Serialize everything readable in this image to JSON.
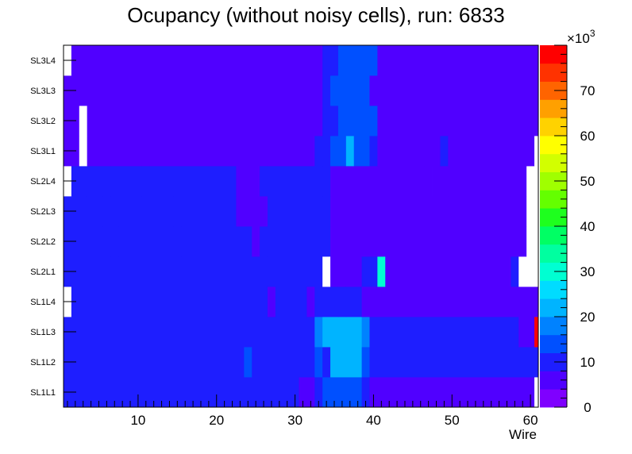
{
  "chart_data": {
    "type": "heatmap",
    "title": "Ocupancy (without noisy cells), run: 6833",
    "xlabel": "Wire",
    "ylabel": "",
    "x_ticks": [
      "10",
      "20",
      "30",
      "40",
      "50",
      "60"
    ],
    "x_tick_values": [
      10,
      20,
      30,
      40,
      50,
      60
    ],
    "xlim": [
      0.5,
      61
    ],
    "rows": [
      "SL1L1",
      "SL1L2",
      "SL1L3",
      "SL1L4",
      "SL2L1",
      "SL2L2",
      "SL2L3",
      "SL2L4",
      "SL3L1",
      "SL3L2",
      "SL3L3",
      "SL3L4"
    ],
    "zlim": [
      0,
      80
    ],
    "z_multiplier": "×10³",
    "z_multiplier_base": "×10",
    "z_multiplier_exp": "3",
    "colorbar_ticks": [
      "0",
      "10",
      "20",
      "30",
      "40",
      "50",
      "60",
      "70"
    ],
    "colorbar_tick_values": [
      0,
      10,
      20,
      30,
      40,
      50,
      60,
      70
    ],
    "colorbar_colors": [
      "#7f00ff",
      "#5000ff",
      "#1e1eff",
      "#0050ff",
      "#0082ff",
      "#00b4ff",
      "#00dcff",
      "#00ffd2",
      "#00ffa0",
      "#00ff64",
      "#1eff1e",
      "#64ff00",
      "#a0ff00",
      "#d2ff00",
      "#ffff00",
      "#ffd200",
      "#ffa000",
      "#ff6400",
      "#ff3200",
      "#ff0000"
    ],
    "empty_cell_value": null,
    "cells": [
      [
        [
          1,
          30,
          8.5
        ],
        [
          31,
          32,
          6.5
        ],
        [
          33,
          33,
          8.5
        ],
        [
          34,
          38,
          14
        ],
        [
          39,
          39,
          11
        ],
        [
          40,
          59,
          7
        ],
        [
          60,
          60,
          7
        ],
        [
          61,
          61,
          null
        ]
      ],
      [
        [
          1,
          23,
          8.5
        ],
        [
          24,
          24,
          14
        ],
        [
          25,
          32,
          8.5
        ],
        [
          33,
          33,
          14
        ],
        [
          34,
          34,
          11
        ],
        [
          35,
          38,
          21
        ],
        [
          39,
          39,
          14
        ],
        [
          40,
          61,
          8.5
        ]
      ],
      [
        [
          1,
          32,
          8.5
        ],
        [
          33,
          33,
          17
        ],
        [
          34,
          38,
          21
        ],
        [
          39,
          39,
          17
        ],
        [
          40,
          58,
          8.5
        ],
        [
          59,
          60,
          6.5
        ],
        [
          61,
          61,
          77
        ]
      ],
      [
        [
          1,
          1,
          null
        ],
        [
          2,
          26,
          8.5
        ],
        [
          27,
          27,
          6.5
        ],
        [
          28,
          31,
          8.5
        ],
        [
          32,
          32,
          6.5
        ],
        [
          33,
          35,
          11
        ],
        [
          36,
          36,
          8.5
        ],
        [
          37,
          38,
          11
        ],
        [
          39,
          55,
          6.5
        ],
        [
          56,
          56,
          5
        ],
        [
          57,
          61,
          6.5
        ]
      ],
      [
        [
          1,
          2,
          8.5
        ],
        [
          3,
          6,
          11
        ],
        [
          7,
          7,
          8.5
        ],
        [
          8,
          17,
          11
        ],
        [
          18,
          26,
          8.5
        ],
        [
          27,
          33,
          11
        ],
        [
          34,
          34,
          null
        ],
        [
          35,
          38,
          6.5
        ],
        [
          39,
          40,
          8.5
        ],
        [
          41,
          41,
          29
        ],
        [
          42,
          57,
          6.5
        ],
        [
          58,
          58,
          8.5
        ],
        [
          59,
          61,
          null
        ]
      ],
      [
        [
          1,
          2,
          8.5
        ],
        [
          3,
          7,
          11
        ],
        [
          8,
          15,
          11
        ],
        [
          16,
          24,
          8.5
        ],
        [
          25,
          25,
          6.5
        ],
        [
          26,
          26,
          8.5
        ],
        [
          27,
          34,
          11
        ],
        [
          35,
          59,
          6.5
        ],
        [
          60,
          61,
          null
        ]
      ],
      [
        [
          1,
          2,
          8.5
        ],
        [
          3,
          5,
          11
        ],
        [
          6,
          6,
          8.5
        ],
        [
          7,
          14,
          11
        ],
        [
          15,
          22,
          8.5
        ],
        [
          23,
          26,
          6.5
        ],
        [
          27,
          33,
          11
        ],
        [
          34,
          34,
          8.5
        ],
        [
          35,
          59,
          6.5
        ],
        [
          60,
          61,
          null
        ]
      ],
      [
        [
          1,
          1,
          null
        ],
        [
          2,
          3,
          8.5
        ],
        [
          4,
          6,
          11
        ],
        [
          7,
          10,
          8.5
        ],
        [
          11,
          11,
          11
        ],
        [
          12,
          22,
          8.5
        ],
        [
          23,
          25,
          6.5
        ],
        [
          26,
          26,
          8.5
        ],
        [
          27,
          33,
          11
        ],
        [
          34,
          34,
          8.5
        ],
        [
          35,
          45,
          6.5
        ],
        [
          46,
          46,
          5
        ],
        [
          47,
          47,
          6.5
        ],
        [
          48,
          49,
          5
        ],
        [
          50,
          57,
          6.5
        ],
        [
          58,
          59,
          6.5
        ],
        [
          60,
          61,
          null
        ]
      ],
      [
        [
          1,
          2,
          6.5
        ],
        [
          3,
          3,
          null
        ],
        [
          4,
          32,
          6.5
        ],
        [
          33,
          33,
          8.5
        ],
        [
          34,
          34,
          11
        ],
        [
          35,
          36,
          14
        ],
        [
          37,
          37,
          21
        ],
        [
          38,
          39,
          14
        ],
        [
          40,
          40,
          8.5
        ],
        [
          41,
          48,
          6.5
        ],
        [
          49,
          49,
          8.5
        ],
        [
          50,
          59,
          6.5
        ],
        [
          60,
          60,
          6.5
        ],
        [
          61,
          61,
          null
        ]
      ],
      [
        [
          1,
          2,
          6.5
        ],
        [
          3,
          3,
          null
        ],
        [
          4,
          33,
          6.5
        ],
        [
          34,
          34,
          8.5
        ],
        [
          35,
          35,
          11
        ],
        [
          36,
          40,
          14
        ],
        [
          41,
          59,
          6.5
        ],
        [
          60,
          61,
          5
        ]
      ],
      [
        [
          1,
          1,
          6.5
        ],
        [
          2,
          2,
          5
        ],
        [
          3,
          33,
          6.5
        ],
        [
          34,
          34,
          11
        ],
        [
          35,
          39,
          14
        ],
        [
          40,
          45,
          6.5
        ],
        [
          46,
          46,
          5
        ],
        [
          47,
          59,
          6.5
        ],
        [
          60,
          61,
          5
        ]
      ],
      [
        [
          1,
          1,
          null
        ],
        [
          2,
          3,
          5
        ],
        [
          4,
          33,
          6.5
        ],
        [
          34,
          34,
          8.5
        ],
        [
          35,
          35,
          11
        ],
        [
          36,
          40,
          14
        ],
        [
          41,
          59,
          6.5
        ],
        [
          60,
          61,
          5
        ]
      ]
    ]
  }
}
